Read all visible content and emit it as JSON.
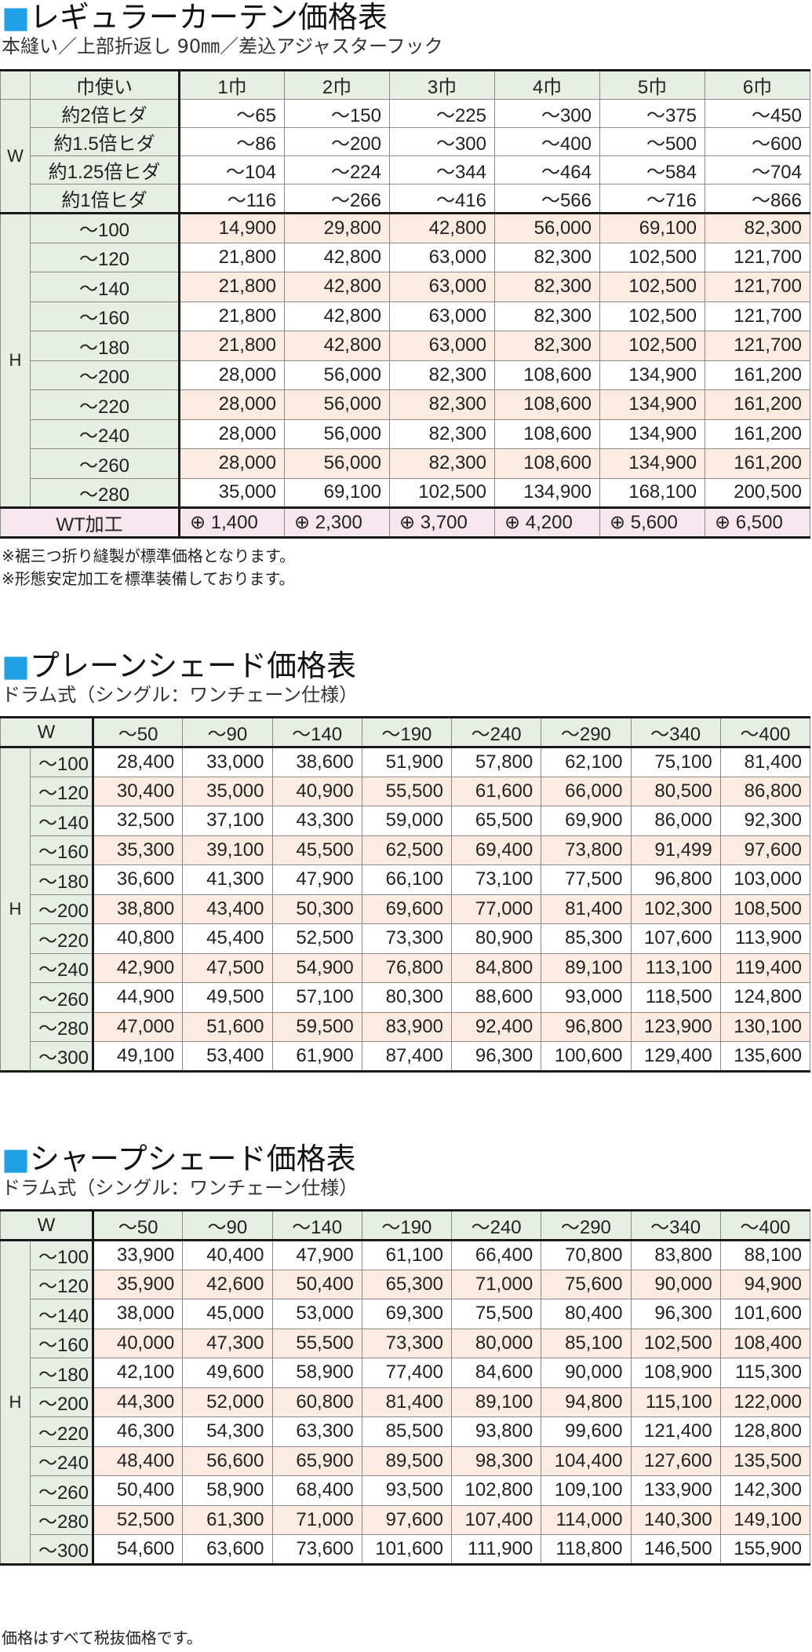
{
  "regular": {
    "title_square": "■",
    "title": "レギュラーカーテン価格表",
    "subtitle": "本縫い／上部折返し 90㎜／差込アジャスターフック",
    "header_label": "巾使い",
    "columns": [
      "1巾",
      "2巾",
      "3巾",
      "4巾",
      "5巾",
      "6巾"
    ],
    "w_label": "W",
    "w_rows": [
      {
        "label": "約2倍ヒダ",
        "values": [
          "～65",
          "～150",
          "～225",
          "～300",
          "～375",
          "～450"
        ]
      },
      {
        "label": "約1.5倍ヒダ",
        "values": [
          "～86",
          "～200",
          "～300",
          "～400",
          "～500",
          "～600"
        ]
      },
      {
        "label": "約1.25倍ヒダ",
        "values": [
          "～104",
          "～224",
          "～344",
          "～464",
          "～584",
          "～704"
        ]
      },
      {
        "label": "約1倍ヒダ",
        "values": [
          "～116",
          "～266",
          "～416",
          "～566",
          "～716",
          "～866"
        ]
      }
    ],
    "h_label": "H",
    "h_rows": [
      {
        "label": "～100",
        "values": [
          "14,900",
          "29,800",
          "42,800",
          "56,000",
          "69,100",
          "82,300"
        ]
      },
      {
        "label": "～120",
        "values": [
          "21,800",
          "42,800",
          "63,000",
          "82,300",
          "102,500",
          "121,700"
        ]
      },
      {
        "label": "～140",
        "values": [
          "21,800",
          "42,800",
          "63,000",
          "82,300",
          "102,500",
          "121,700"
        ]
      },
      {
        "label": "～160",
        "values": [
          "21,800",
          "42,800",
          "63,000",
          "82,300",
          "102,500",
          "121,700"
        ]
      },
      {
        "label": "～180",
        "values": [
          "21,800",
          "42,800",
          "63,000",
          "82,300",
          "102,500",
          "121,700"
        ]
      },
      {
        "label": "～200",
        "values": [
          "28,000",
          "56,000",
          "82,300",
          "108,600",
          "134,900",
          "161,200"
        ]
      },
      {
        "label": "～220",
        "values": [
          "28,000",
          "56,000",
          "82,300",
          "108,600",
          "134,900",
          "161,200"
        ]
      },
      {
        "label": "～240",
        "values": [
          "28,000",
          "56,000",
          "82,300",
          "108,600",
          "134,900",
          "161,200"
        ]
      },
      {
        "label": "～260",
        "values": [
          "28,000",
          "56,000",
          "82,300",
          "108,600",
          "134,900",
          "161,200"
        ]
      },
      {
        "label": "～280",
        "values": [
          "35,000",
          "69,100",
          "102,500",
          "134,900",
          "168,100",
          "200,500"
        ]
      }
    ],
    "wt_label": "WT加工",
    "wt_values": [
      "⊕ 1,400",
      "⊕ 2,300",
      "⊕ 3,700",
      "⊕ 4,200",
      "⊕ 5,600",
      "⊕ 6,500"
    ],
    "notes": [
      "※裾三つ折り縫製が標準価格となります。",
      "※形態安定加工を標準装備しております。"
    ]
  },
  "plain": {
    "title_square": "■",
    "title": "プレーンシェード価格表",
    "subtitle": "ドラム式（シングル：ワンチェーン仕様）",
    "w_label": "W",
    "columns": [
      "～50",
      "～90",
      "～140",
      "～190",
      "～240",
      "～290",
      "～340",
      "～400"
    ],
    "h_label": "H",
    "rows": [
      {
        "label": "～100",
        "values": [
          "28,400",
          "33,000",
          "38,600",
          "51,900",
          "57,800",
          "62,100",
          "75,100",
          "81,400"
        ]
      },
      {
        "label": "～120",
        "values": [
          "30,400",
          "35,000",
          "40,900",
          "55,500",
          "61,600",
          "66,000",
          "80,500",
          "86,800"
        ]
      },
      {
        "label": "～140",
        "values": [
          "32,500",
          "37,100",
          "43,300",
          "59,000",
          "65,500",
          "69,900",
          "86,000",
          "92,300"
        ]
      },
      {
        "label": "～160",
        "values": [
          "35,300",
          "39,100",
          "45,500",
          "62,500",
          "69,400",
          "73,800",
          "91,499",
          "97,600"
        ]
      },
      {
        "label": "～180",
        "values": [
          "36,600",
          "41,300",
          "47,900",
          "66,100",
          "73,100",
          "77,500",
          "96,800",
          "103,000"
        ]
      },
      {
        "label": "～200",
        "values": [
          "38,800",
          "43,400",
          "50,300",
          "69,600",
          "77,000",
          "81,400",
          "102,300",
          "108,500"
        ]
      },
      {
        "label": "～220",
        "values": [
          "40,800",
          "45,400",
          "52,500",
          "73,300",
          "80,900",
          "85,300",
          "107,600",
          "113,900"
        ]
      },
      {
        "label": "～240",
        "values": [
          "42,900",
          "47,500",
          "54,900",
          "76,800",
          "84,800",
          "89,100",
          "113,100",
          "119,400"
        ]
      },
      {
        "label": "～260",
        "values": [
          "44,900",
          "49,500",
          "57,100",
          "80,300",
          "88,600",
          "93,000",
          "118,500",
          "124,800"
        ]
      },
      {
        "label": "～280",
        "values": [
          "47,000",
          "51,600",
          "59,500",
          "83,900",
          "92,400",
          "96,800",
          "123,900",
          "130,100"
        ]
      },
      {
        "label": "～300",
        "values": [
          "49,100",
          "53,400",
          "61,900",
          "87,400",
          "96,300",
          "100,600",
          "129,400",
          "135,600"
        ]
      }
    ]
  },
  "sharp": {
    "title_square": "■",
    "title": "シャープシェード価格表",
    "subtitle": "ドラム式（シングル：ワンチェーン仕様）",
    "w_label": "W",
    "columns": [
      "～50",
      "～90",
      "～140",
      "～190",
      "～240",
      "～290",
      "～340",
      "～400"
    ],
    "h_label": "H",
    "rows": [
      {
        "label": "～100",
        "values": [
          "33,900",
          "40,400",
          "47,900",
          "61,100",
          "66,400",
          "70,800",
          "83,800",
          "88,100"
        ]
      },
      {
        "label": "～120",
        "values": [
          "35,900",
          "42,600",
          "50,400",
          "65,300",
          "71,000",
          "75,600",
          "90,000",
          "94,900"
        ]
      },
      {
        "label": "～140",
        "values": [
          "38,000",
          "45,000",
          "53,000",
          "69,300",
          "75,500",
          "80,400",
          "96,300",
          "101,600"
        ]
      },
      {
        "label": "～160",
        "values": [
          "40,000",
          "47,300",
          "55,500",
          "73,300",
          "80,000",
          "85,100",
          "102,500",
          "108,400"
        ]
      },
      {
        "label": "～180",
        "values": [
          "42,100",
          "49,600",
          "58,900",
          "77,400",
          "84,600",
          "90,000",
          "108,900",
          "115,300"
        ]
      },
      {
        "label": "～200",
        "values": [
          "44,300",
          "52,000",
          "60,800",
          "81,400",
          "89,100",
          "94,800",
          "115,100",
          "122,000"
        ]
      },
      {
        "label": "～220",
        "values": [
          "46,300",
          "54,300",
          "63,300",
          "85,500",
          "93,800",
          "99,600",
          "121,400",
          "128,800"
        ]
      },
      {
        "label": "～240",
        "values": [
          "48,400",
          "56,600",
          "65,900",
          "89,500",
          "98,300",
          "104,400",
          "127,600",
          "135,500"
        ]
      },
      {
        "label": "～260",
        "values": [
          "50,400",
          "58,900",
          "68,400",
          "93,500",
          "102,800",
          "109,100",
          "133,900",
          "142,300"
        ]
      },
      {
        "label": "～280",
        "values": [
          "52,500",
          "61,300",
          "71,000",
          "97,600",
          "107,400",
          "114,000",
          "140,300",
          "149,100"
        ]
      },
      {
        "label": "～300",
        "values": [
          "54,600",
          "63,600",
          "73,600",
          "101,600",
          "111,900",
          "118,800",
          "146,500",
          "155,900"
        ]
      }
    ]
  },
  "footer": "価格はすべて税抜価格です。"
}
